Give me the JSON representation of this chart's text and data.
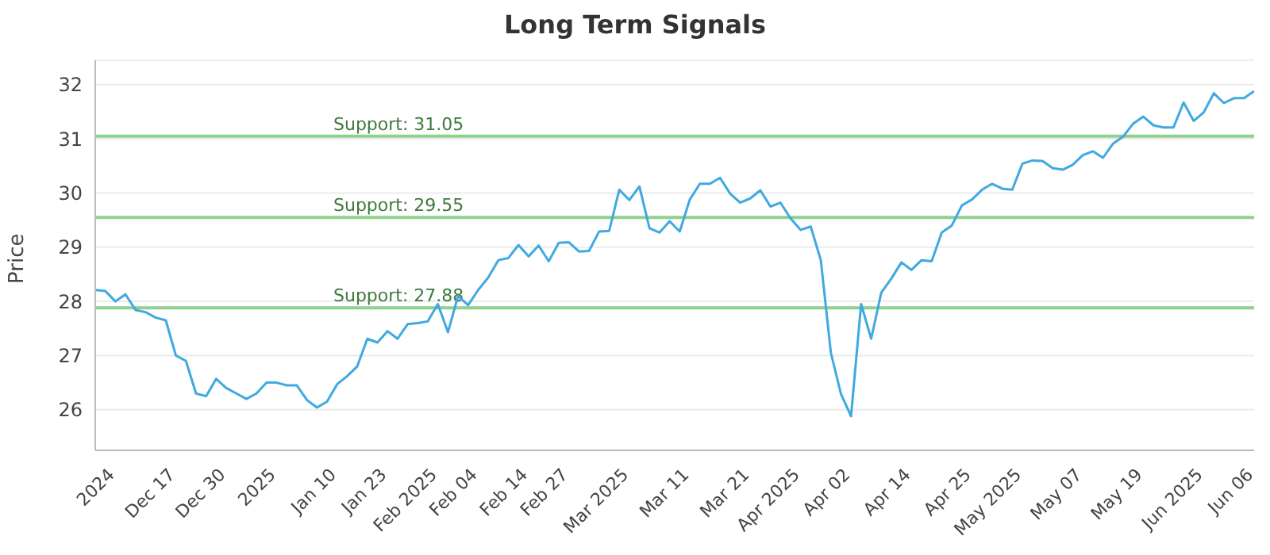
{
  "chart_data": {
    "type": "line",
    "title": "Long Term Signals",
    "ylabel": "Price",
    "categories": [
      null,
      null,
      "2024",
      null,
      null,
      null,
      null,
      null,
      "Dec 17",
      null,
      null,
      null,
      null,
      "Dec 30",
      null,
      null,
      null,
      null,
      "2025",
      null,
      null,
      null,
      null,
      null,
      "Jan 10",
      null,
      null,
      null,
      null,
      "Jan 23",
      null,
      null,
      null,
      null,
      "Feb 2025",
      null,
      null,
      null,
      "Feb 04",
      null,
      null,
      null,
      null,
      "Feb 14",
      null,
      null,
      null,
      "Feb 27",
      null,
      null,
      null,
      null,
      null,
      "Mar 2025",
      null,
      null,
      null,
      null,
      null,
      "Mar 11",
      null,
      null,
      null,
      null,
      null,
      "Mar 21",
      null,
      null,
      null,
      null,
      "Apr 2025",
      null,
      null,
      null,
      null,
      "Apr 02",
      null,
      null,
      null,
      null,
      null,
      "Apr 14",
      null,
      null,
      null,
      null,
      null,
      "Apr 25",
      null,
      null,
      null,
      null,
      "May 2025",
      null,
      null,
      null,
      null,
      null,
      "May 07",
      null,
      null,
      null,
      null,
      null,
      "May 19",
      null,
      null,
      null,
      null,
      null,
      "Jun 2025",
      null,
      null,
      null,
      null,
      "Jun 06"
    ],
    "series": [
      {
        "color": "#3fa9e0",
        "values": [
          28.21,
          28.19,
          28.0,
          28.13,
          27.84,
          27.8,
          27.7,
          27.65,
          27.0,
          26.9,
          26.3,
          26.25,
          26.57,
          26.4,
          26.3,
          26.2,
          26.3,
          26.5,
          26.5,
          26.45,
          26.45,
          26.18,
          26.04,
          26.15,
          26.47,
          26.62,
          26.8,
          27.31,
          27.24,
          27.45,
          27.31,
          27.58,
          27.6,
          27.63,
          27.95,
          27.43,
          28.1,
          27.93,
          28.21,
          28.44,
          28.76,
          28.8,
          29.04,
          28.83,
          29.03,
          28.74,
          29.08,
          29.09,
          28.92,
          28.93,
          29.29,
          29.3,
          30.06,
          29.87,
          30.12,
          29.35,
          29.27,
          29.48,
          29.29,
          29.88,
          30.17,
          30.17,
          30.28,
          29.99,
          29.82,
          29.9,
          30.05,
          29.75,
          29.82,
          29.53,
          29.32,
          29.38,
          28.76,
          27.05,
          26.29,
          25.88,
          27.95,
          27.31,
          28.16,
          28.42,
          28.72,
          28.58,
          28.76,
          28.74,
          29.27,
          29.4,
          29.77,
          29.88,
          30.06,
          30.17,
          30.08,
          30.06,
          30.54,
          30.6,
          30.59,
          30.46,
          30.43,
          30.52,
          30.7,
          30.77,
          30.65,
          30.91,
          31.04,
          31.28,
          31.41,
          31.25,
          31.21,
          31.21,
          31.67,
          31.33,
          31.49,
          31.84,
          31.66,
          31.75,
          31.75,
          31.88
        ]
      }
    ],
    "ylim": [
      25.25,
      32.45
    ],
    "yticks": [
      26,
      27,
      28,
      29,
      30,
      31,
      32
    ],
    "grid": "y",
    "marker": "none",
    "line_style": "solid",
    "ref_lines": [
      {
        "axis": "y",
        "value": 31.05,
        "label": "Support: 31.05",
        "color": "#8fd18f"
      },
      {
        "axis": "y",
        "value": 29.55,
        "label": "Support: 29.55",
        "color": "#8fd18f"
      },
      {
        "axis": "y",
        "value": 27.88,
        "label": "Support: 27.88",
        "color": "#8fd18f"
      }
    ]
  }
}
